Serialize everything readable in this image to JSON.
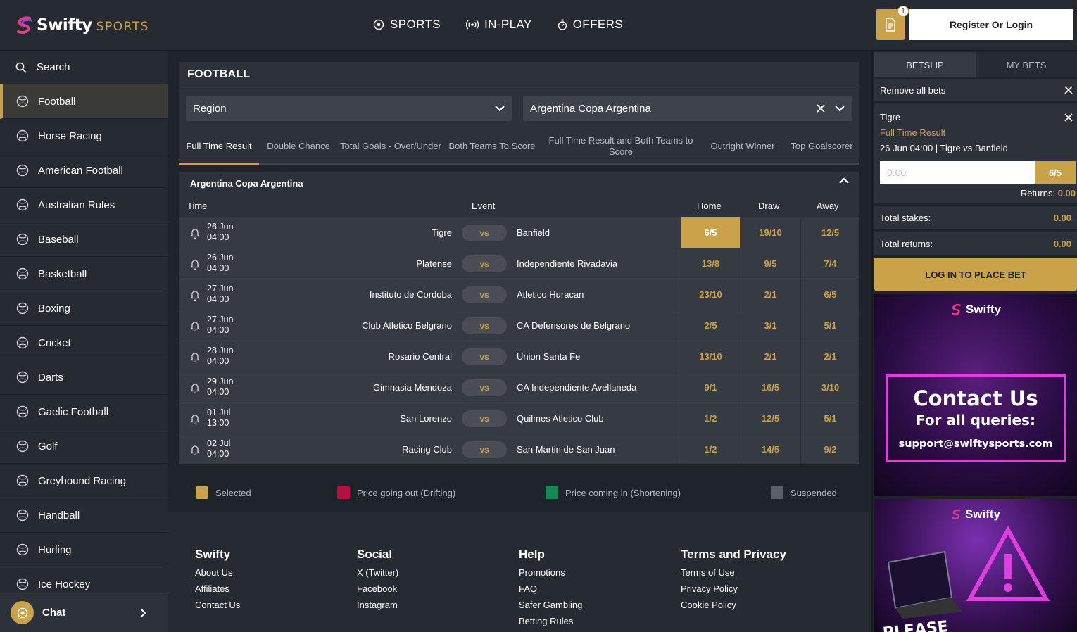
{
  "brand": {
    "name": "Swifty",
    "sub": "SPORTS"
  },
  "topnav": [
    {
      "label": "SPORTS",
      "icon": "soccer-ball-icon"
    },
    {
      "label": "IN-PLAY",
      "icon": "broadcast-icon"
    },
    {
      "label": "OFFERS",
      "icon": "stopwatch-icon"
    }
  ],
  "header": {
    "betslip_count": "1",
    "login_label": "Register Or Login"
  },
  "sidebar": {
    "search_label": "Search",
    "items": [
      {
        "label": "Football",
        "icon": "football-icon",
        "active": true
      },
      {
        "label": "Horse Racing",
        "icon": "horse-icon"
      },
      {
        "label": "American Football",
        "icon": "helmet-icon"
      },
      {
        "label": "Australian Rules",
        "icon": "oval-ball-icon"
      },
      {
        "label": "Baseball",
        "icon": "baseball-icon"
      },
      {
        "label": "Basketball",
        "icon": "basketball-icon"
      },
      {
        "label": "Boxing",
        "icon": "boxing-glove-icon"
      },
      {
        "label": "Cricket",
        "icon": "cricket-icon"
      },
      {
        "label": "Darts",
        "icon": "dartboard-icon"
      },
      {
        "label": "Gaelic Football",
        "icon": "gaelic-ball-icon"
      },
      {
        "label": "Golf",
        "icon": "golf-icon"
      },
      {
        "label": "Greyhound Racing",
        "icon": "greyhound-icon"
      },
      {
        "label": "Handball",
        "icon": "handball-icon"
      },
      {
        "label": "Hurling",
        "icon": "hurling-icon"
      },
      {
        "label": "Ice Hockey",
        "icon": "puck-icon"
      }
    ],
    "chat_label": "Chat"
  },
  "main": {
    "title": "FOOTBALL",
    "region_select": "Region",
    "competition_select": "Argentina Copa Argentina",
    "tabs": [
      {
        "label": "Full Time Result",
        "active": true
      },
      {
        "label": "Double Chance"
      },
      {
        "label": "Total Goals - Over/Under"
      },
      {
        "label": "Both Teams To Score"
      },
      {
        "label": "Full Time Result and Both Teams to Score"
      },
      {
        "label": "Outright Winner"
      },
      {
        "label": "Top Goalscorer"
      }
    ],
    "competition": "Argentina Copa Argentina",
    "columns": {
      "time": "Time",
      "event": "Event",
      "home": "Home",
      "draw": "Draw",
      "away": "Away"
    },
    "vs_label": "vs",
    "matches": [
      {
        "date": "26 Jun",
        "time": "04:00",
        "home": "Tigre",
        "away": "Banfield",
        "odds": [
          "6/5",
          "19/10",
          "12/5"
        ],
        "selected": 0
      },
      {
        "date": "26 Jun",
        "time": "04:00",
        "home": "Platense",
        "away": "Independiente Rivadavia",
        "odds": [
          "13/8",
          "9/5",
          "7/4"
        ],
        "selected": -1
      },
      {
        "date": "27 Jun",
        "time": "04:00",
        "home": "Instituto de Cordoba",
        "away": "Atletico Huracan",
        "odds": [
          "23/10",
          "2/1",
          "6/5"
        ],
        "selected": -1
      },
      {
        "date": "27 Jun",
        "time": "04:00",
        "home": "Club Atletico Belgrano",
        "away": "CA Defensores de Belgrano",
        "odds": [
          "2/5",
          "3/1",
          "5/1"
        ],
        "selected": -1
      },
      {
        "date": "28 Jun",
        "time": "04:00",
        "home": "Rosario Central",
        "away": "Union Santa Fe",
        "odds": [
          "13/10",
          "2/1",
          "2/1"
        ],
        "selected": -1
      },
      {
        "date": "29 Jun",
        "time": "04:00",
        "home": "Gimnasia Mendoza",
        "away": "CA Independiente Avellaneda",
        "odds": [
          "9/1",
          "16/5",
          "3/10"
        ],
        "selected": -1
      },
      {
        "date": "01 Jul",
        "time": "13:00",
        "home": "San Lorenzo",
        "away": "Quilmes Atletico Club",
        "odds": [
          "1/2",
          "12/5",
          "5/1"
        ],
        "selected": -1
      },
      {
        "date": "02 Jul",
        "time": "04:00",
        "home": "Racing Club",
        "away": "San Martin de San Juan",
        "odds": [
          "1/2",
          "14/5",
          "9/2"
        ],
        "selected": -1
      }
    ],
    "legend": [
      {
        "label": "Selected",
        "color": "#c9a24a"
      },
      {
        "label": "Price going out (Drifting)",
        "color": "#b3123e"
      },
      {
        "label": "Price coming in (Shortening)",
        "color": "#138a55"
      },
      {
        "label": "Suspended",
        "color": "#5b5f66"
      }
    ]
  },
  "footer": {
    "columns": [
      {
        "title": "Swifty",
        "links": [
          "About Us",
          "Affiliates",
          "Contact Us"
        ]
      },
      {
        "title": "Social",
        "links": [
          "X (Twitter)",
          "Facebook",
          "Instagram"
        ]
      },
      {
        "title": "Help",
        "links": [
          "Promotions",
          "FAQ",
          "Safer Gambling",
          "Betting Rules"
        ]
      },
      {
        "title": "Terms and Privacy",
        "links": [
          "Terms of Use",
          "Privacy Policy",
          "Cookie Policy"
        ]
      }
    ]
  },
  "betslip": {
    "tabs": [
      "BETSLIP",
      "MY BETS"
    ],
    "remove_all": "Remove all bets",
    "selection": "Tigre",
    "market": "Full Time Result",
    "event": "26 Jun 04:00 | Tigre vs Banfield",
    "stake_placeholder": "0.00",
    "odds": "6/5",
    "returns_label": "Returns:",
    "returns_value": "0.00",
    "total_stakes_label": "Total stakes:",
    "total_stakes_value": "0.00",
    "total_returns_label": "Total returns:",
    "total_returns_value": "0.00",
    "place_bet": "LOG IN TO PLACE BET"
  },
  "promos": [
    {
      "brand": "Swifty",
      "line1": "Contact Us",
      "line2": "For all queries:",
      "line3": "support@swiftysports.com"
    },
    {
      "brand": "Swifty",
      "line1": "PLEASE"
    }
  ],
  "colors": {
    "accent": "#c9a24a",
    "background": "#1f232a",
    "panel": "#2d3139"
  }
}
